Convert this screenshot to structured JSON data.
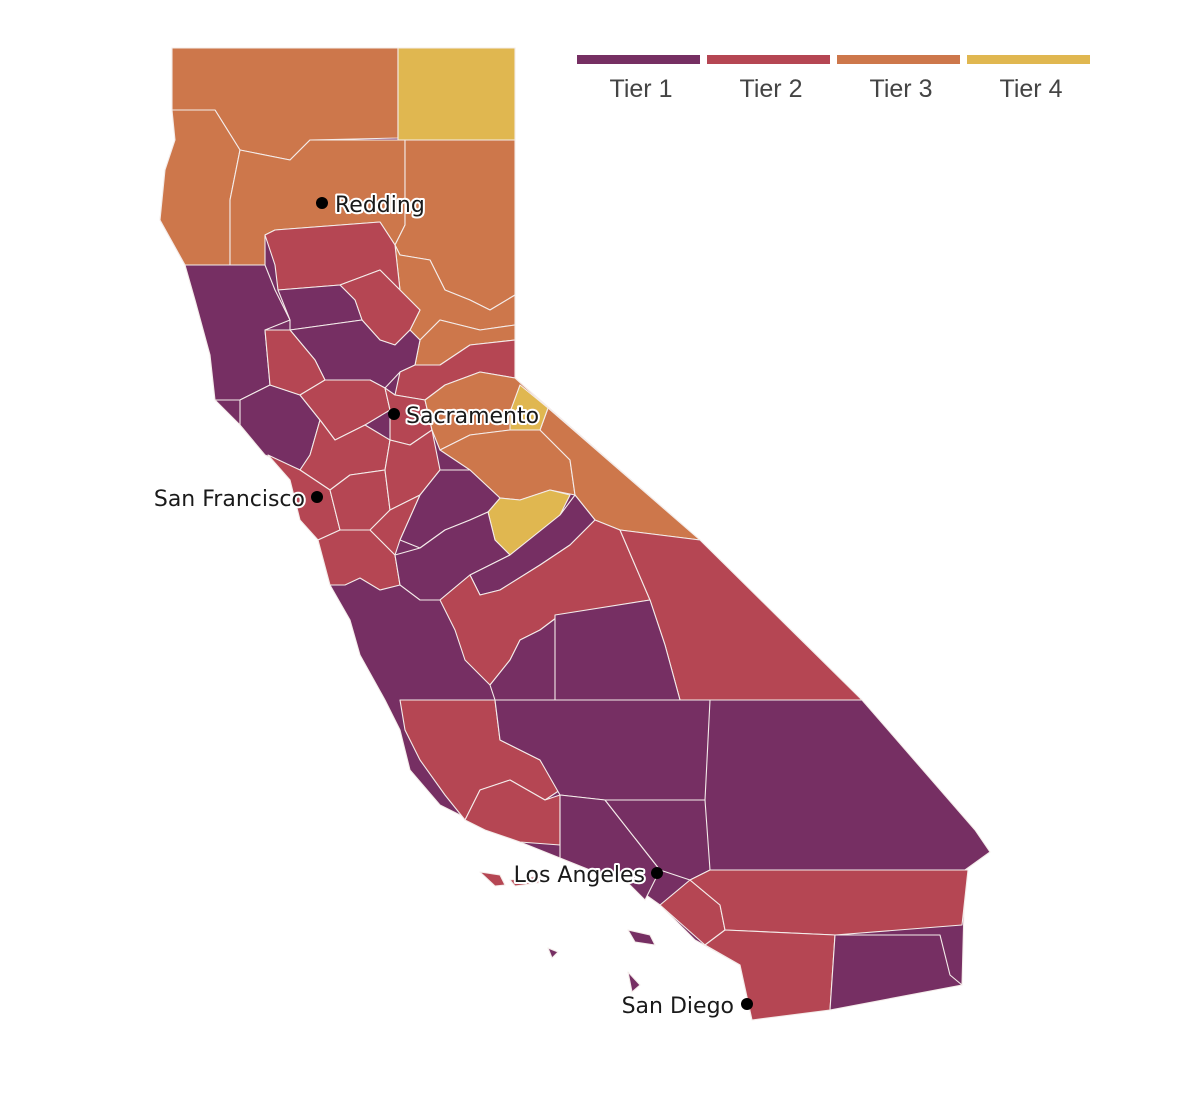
{
  "legend": {
    "tiers": [
      {
        "label": "Tier 1",
        "color": "#762f63"
      },
      {
        "label": "Tier 2",
        "color": "#b54653"
      },
      {
        "label": "Tier 3",
        "color": "#cd774b"
      },
      {
        "label": "Tier 4",
        "color": "#e0b750"
      }
    ]
  },
  "cities": [
    {
      "name": "Redding",
      "label": "Redding"
    },
    {
      "name": "Sacramento",
      "label": "Sacramento"
    },
    {
      "name": "San Francisco",
      "label": "San Francisco"
    },
    {
      "name": "Los Angeles",
      "label": "Los Angeles"
    },
    {
      "name": "San Diego",
      "label": "San Diego"
    }
  ],
  "colors": {
    "border": "#f4ecea",
    "background": "#ffffff",
    "label": "#1a1a1a"
  }
}
